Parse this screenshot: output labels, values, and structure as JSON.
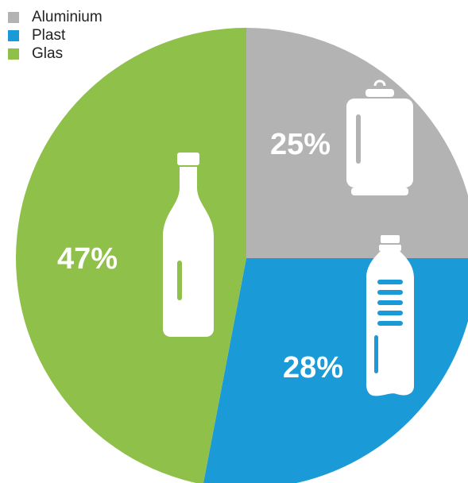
{
  "chart_data": {
    "type": "pie",
    "title": "",
    "slices": [
      {
        "name": "Aluminium",
        "value": 25,
        "label": "25%",
        "color": "#b3b3b3",
        "icon": "can-icon"
      },
      {
        "name": "Plast",
        "value": 28,
        "label": "28%",
        "color": "#1a9ad6",
        "icon": "plastic-bottle-icon"
      },
      {
        "name": "Glas",
        "value": 47,
        "label": "47%",
        "color": "#8fc04a",
        "icon": "glass-bottle-icon"
      }
    ],
    "legend": {
      "placement": "top-left",
      "entries": [
        "Aluminium",
        "Plast",
        "Glas"
      ]
    }
  }
}
